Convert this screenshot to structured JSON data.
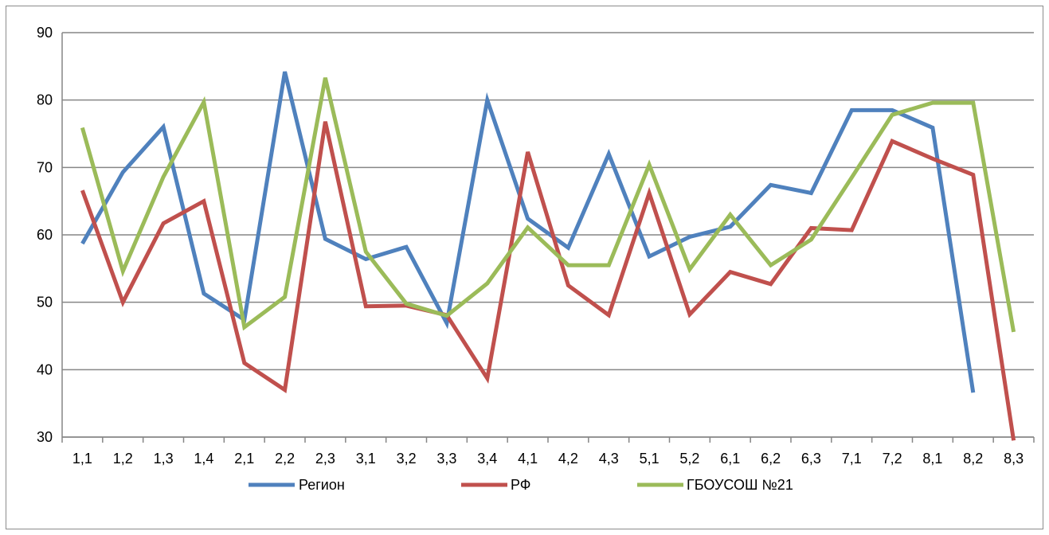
{
  "chart_data": {
    "type": "line",
    "categories": [
      "1,1",
      "1,2",
      "1,3",
      "1,4",
      "2,1",
      "2,2",
      "2,3",
      "3,1",
      "3,2",
      "3,3",
      "3,4",
      "4,1",
      "4,2",
      "4,3",
      "5,1",
      "5,2",
      "6,1",
      "6,2",
      "6,3",
      "7,1",
      "7,2",
      "8,1",
      "8,2",
      "8,3"
    ],
    "ylim": [
      30,
      90
    ],
    "yticks": [
      "30",
      "40",
      "50",
      "60",
      "70",
      "80",
      "90"
    ],
    "grid": true,
    "legend_position": "bottom",
    "series": [
      {
        "name": "Регион",
        "color": "#4f81bd",
        "values": [
          58.7,
          69.3,
          76.0,
          51.3,
          47.4,
          84.2,
          59.4,
          56.4,
          58.2,
          46.9,
          80.0,
          62.4,
          58.1,
          72.0,
          56.8,
          59.7,
          61.2,
          67.4,
          66.2,
          78.5,
          78.5,
          75.9,
          36.6,
          null
        ]
      },
      {
        "name": "РФ",
        "color": "#c0504d",
        "values": [
          66.6,
          50.0,
          61.7,
          65.0,
          41.0,
          37.0,
          76.8,
          49.4,
          49.5,
          48.1,
          38.7,
          72.3,
          52.5,
          48.1,
          66.2,
          48.2,
          54.5,
          52.7,
          61.0,
          60.7,
          73.9,
          71.3,
          68.9,
          29.5
        ]
      },
      {
        "name": "ГБОУСОШ №21",
        "color": "#9bbb59",
        "values": [
          75.9,
          54.6,
          68.6,
          79.7,
          46.3,
          50.8,
          83.3,
          57.5,
          49.8,
          48.0,
          52.8,
          61.1,
          55.5,
          55.5,
          70.4,
          54.9,
          63.0,
          55.5,
          59.3,
          68.5,
          77.8,
          79.6,
          79.6,
          45.6
        ]
      }
    ]
  }
}
